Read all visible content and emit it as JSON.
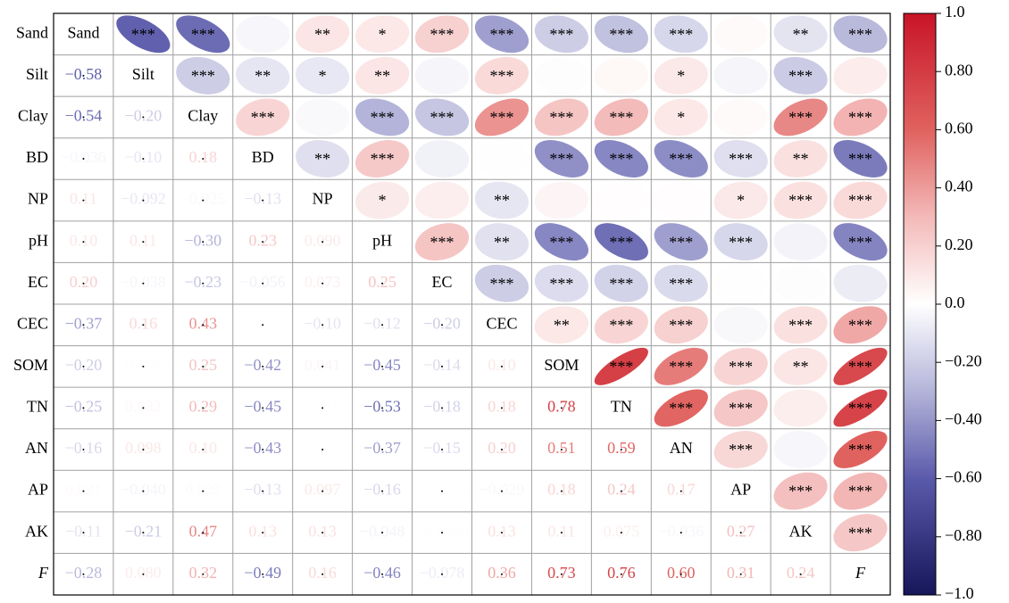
{
  "chart_data": {
    "type": "correlation-matrix",
    "variables": [
      "Sand",
      "Silt",
      "Clay",
      "BD",
      "NP",
      "pH",
      "EC",
      "CEC",
      "SOM",
      "TN",
      "AN",
      "AP",
      "AK",
      "F"
    ],
    "italic_variables": [
      13
    ],
    "values": [
      [],
      [
        -0.58
      ],
      [
        -0.54,
        -0.2
      ],
      [
        -0.036,
        -0.1,
        0.18
      ],
      [
        0.11,
        -0.092,
        -0.025,
        -0.13
      ],
      [
        0.1,
        0.11,
        -0.3,
        0.23,
        0.09
      ],
      [
        0.2,
        -0.038,
        -0.23,
        -0.056,
        0.073,
        0.25
      ],
      [
        -0.37,
        0.16,
        0.43,
        0.005,
        -0.1,
        -0.12,
        -0.2
      ],
      [
        -0.2,
        -0.0065,
        0.25,
        -0.42,
        0.041,
        -0.45,
        -0.14,
        0.1
      ],
      [
        -0.25,
        0.032,
        0.29,
        -0.45,
        0.01,
        -0.53,
        -0.18,
        0.18,
        0.78
      ],
      [
        -0.16,
        0.098,
        0.1,
        -0.43,
        0.01,
        -0.37,
        -0.15,
        0.2,
        0.51,
        0.59
      ],
      [
        0.021,
        -0.04,
        0.022,
        -0.13,
        0.097,
        -0.16,
        -0.0051,
        -0.029,
        0.18,
        0.24,
        0.17
      ],
      [
        -0.11,
        -0.21,
        0.47,
        0.13,
        0.13,
        -0.048,
        -0.0086,
        0.13,
        0.11,
        0.075,
        -0.036,
        0.27
      ],
      [
        -0.28,
        0.08,
        0.32,
        -0.49,
        0.16,
        -0.46,
        -0.078,
        0.36,
        0.73,
        0.76,
        0.6,
        0.31,
        0.24
      ]
    ],
    "value_labels": [
      [],
      [
        "−0.58"
      ],
      [
        "−0.54",
        "−0.20"
      ],
      [
        "−0.036",
        "−0.10",
        "0.18"
      ],
      [
        "0.11",
        "−0.092",
        "−0.025",
        "−0.13"
      ],
      [
        "0.10",
        "0.11",
        "−0.30",
        "0.23",
        "0.090"
      ],
      [
        "0.20",
        "−0.038",
        "−0.23",
        "−0.056",
        "0.073",
        "0.25"
      ],
      [
        "−0.37",
        "0.16",
        "0.43",
        "0.005",
        "−0.10",
        "−0.12",
        "−0.20"
      ],
      [
        "−0.20",
        "−0.0065",
        "0.25",
        "−0.42",
        "0.041",
        "−0.45",
        "−0.14",
        "0.10"
      ],
      [
        "−0.25",
        "0.032",
        "0.29",
        "−0.45",
        "0.010",
        "−0.53",
        "−0.18",
        "0.18",
        "0.78"
      ],
      [
        "−0.16",
        "0.098",
        "0.10",
        "−0.43",
        "0.010",
        "−0.37",
        "−0.15",
        "0.20",
        "0.51",
        "0.59"
      ],
      [
        "0.021",
        "−0.040",
        "0.022",
        "−0.13",
        "0.097",
        "−0.16",
        "−0.0051",
        "−0.029",
        "0.18",
        "0.24",
        "0.17"
      ],
      [
        "−0.11",
        "−0.21",
        "0.47",
        "0.13",
        "0.13",
        "−0.048",
        "−0.0086",
        "0.13",
        "0.11",
        "0.075",
        "−0.036",
        "0.27"
      ],
      [
        "−0.28",
        "0.080",
        "0.32",
        "−0.49",
        "0.16",
        "−0.46",
        "−0.078",
        "0.36",
        "0.73",
        "0.76",
        "0.60",
        "0.31",
        "0.24"
      ]
    ],
    "significance": [
      [],
      [
        "***"
      ],
      [
        "***",
        "***"
      ],
      [
        null,
        "**",
        "***"
      ],
      [
        "**",
        "*",
        null,
        "**"
      ],
      [
        "*",
        "**",
        "***",
        "***",
        "*"
      ],
      [
        "***",
        null,
        "***",
        null,
        null,
        "***"
      ],
      [
        "***",
        "***",
        "***",
        null,
        "**",
        "**",
        "***"
      ],
      [
        "***",
        null,
        "***",
        "***",
        null,
        "***",
        "***",
        "**"
      ],
      [
        "***",
        null,
        "***",
        "***",
        null,
        "***",
        "***",
        "***",
        "***"
      ],
      [
        "***",
        "*",
        "*",
        "***",
        null,
        "***",
        "***",
        "***",
        "***",
        "***"
      ],
      [
        null,
        null,
        null,
        "***",
        "*",
        "***",
        null,
        null,
        "***",
        "***",
        "***"
      ],
      [
        "**",
        "***",
        "***",
        "**",
        "***",
        null,
        null,
        "***",
        "**",
        null,
        null,
        "***"
      ],
      [
        "***",
        null,
        "***",
        "***",
        "***",
        "***",
        null,
        "***",
        "***",
        "***",
        "***",
        "***",
        "***"
      ]
    ],
    "colormap": [
      {
        "value": -1,
        "color": "#16165a"
      },
      {
        "value": -0.6,
        "color": "#5a5aab"
      },
      {
        "value": -0.3,
        "color": "#b4b4da"
      },
      {
        "value": 0,
        "color": "#ffffff"
      },
      {
        "value": 0.3,
        "color": "#f3b9b8"
      },
      {
        "value": 0.6,
        "color": "#e0625f"
      },
      {
        "value": 1,
        "color": "#c81428"
      }
    ],
    "ylim": [
      -1,
      1
    ],
    "yticks": [
      {
        "value": 1,
        "label": "1.0"
      },
      {
        "value": 0.8,
        "label": "0.80"
      },
      {
        "value": 0.6,
        "label": "0.60"
      },
      {
        "value": 0.4,
        "label": "0.40"
      },
      {
        "value": 0.2,
        "label": "0.20"
      },
      {
        "value": 0,
        "label": "0.0"
      },
      {
        "value": -0.2,
        "label": "−0.20"
      },
      {
        "value": -0.4,
        "label": "−0.40"
      },
      {
        "value": -0.6,
        "label": "−0.60"
      },
      {
        "value": -0.8,
        "label": "−0.80"
      },
      {
        "value": -1,
        "label": "−1.0"
      }
    ]
  }
}
